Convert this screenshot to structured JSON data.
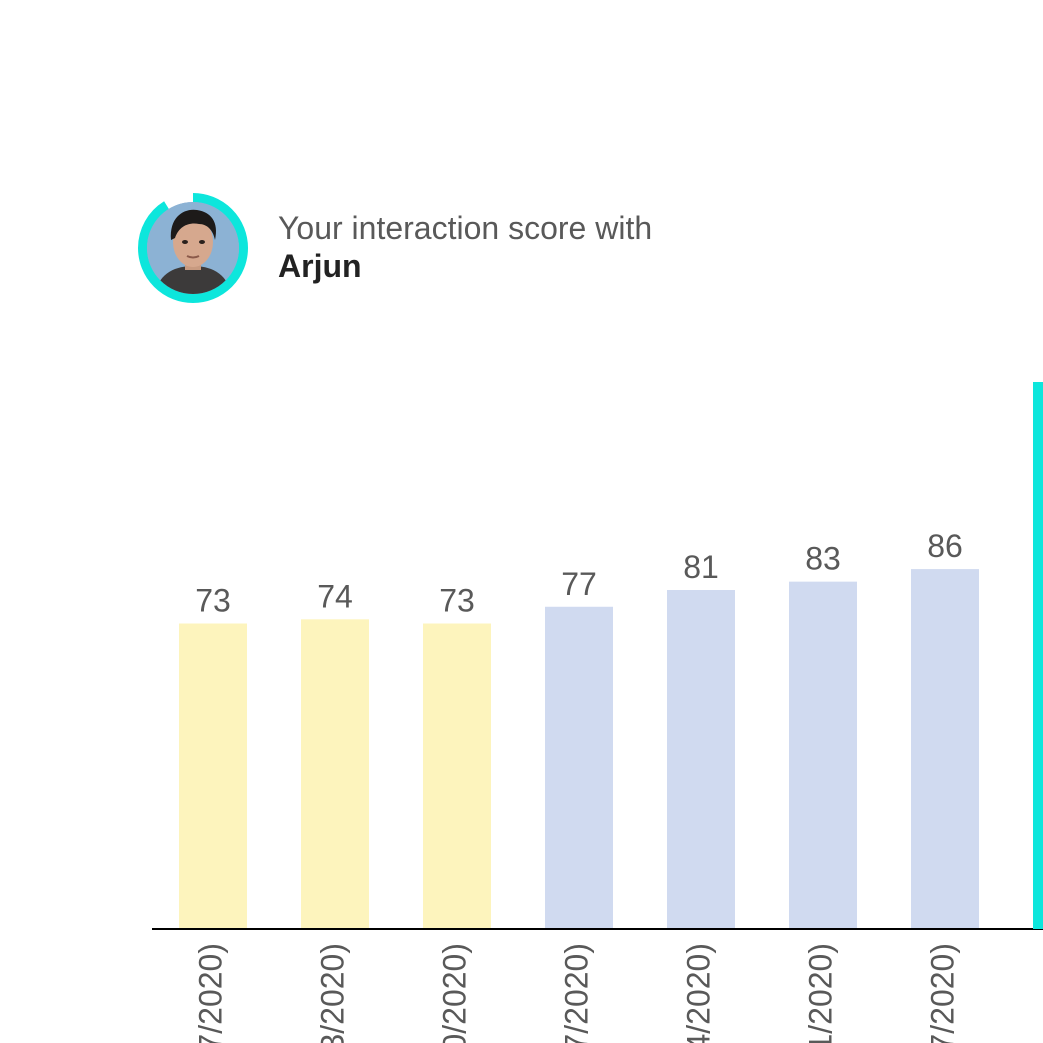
{
  "header": {
    "headline": "Your interaction score with",
    "name": "Arjun",
    "avatar_icon": "person-avatar",
    "ring_color": "#0de6dc"
  },
  "colors": {
    "past_bar": "#fdf4bd",
    "recent_bar": "#d0daf0",
    "axis": "#000000",
    "today_marker": "#0de6dc",
    "label": "#595959"
  },
  "chart_data": {
    "type": "bar",
    "title": "",
    "xlabel": "",
    "ylabel": "",
    "ylim": [
      0,
      100
    ],
    "grid": false,
    "categories": [
      "7/2020)",
      "3/2020)",
      "0/2020)",
      "7/2020)",
      "4/2020)",
      "1/2020)",
      "7/2020)"
    ],
    "values": [
      73,
      74,
      73,
      77,
      81,
      83,
      86
    ],
    "bar_groups": [
      "past",
      "past",
      "past",
      "recent",
      "recent",
      "recent",
      "recent"
    ]
  }
}
